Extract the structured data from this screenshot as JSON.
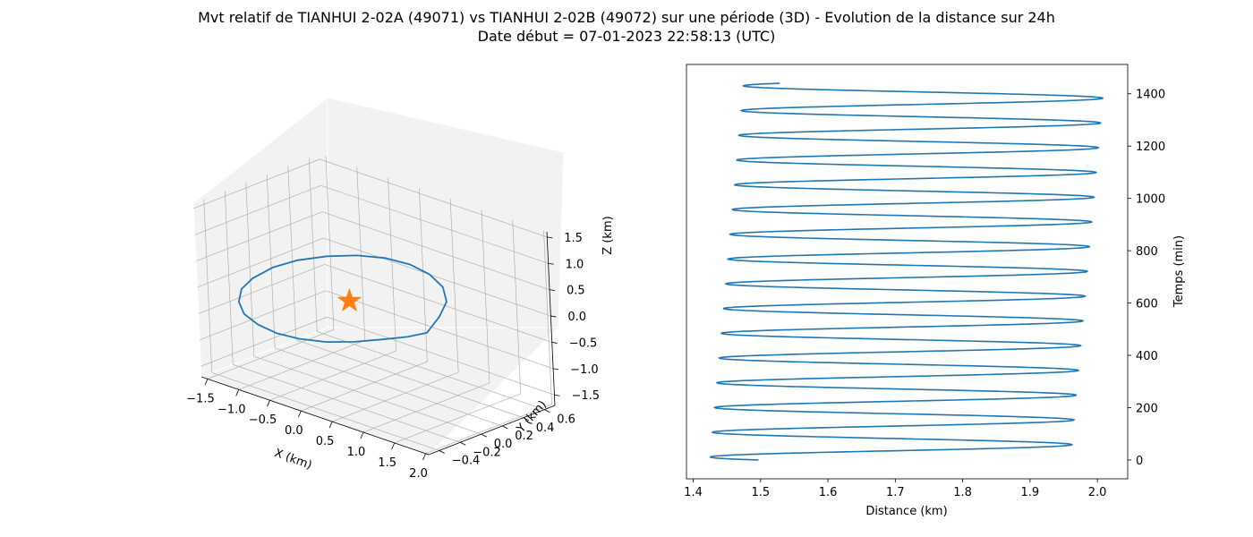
{
  "figure": {
    "title_line1": "Mvt relatif de TIANHUI 2-02A (49071) vs TIANHUI 2-02B (49072) sur une période (3D) - Evolution de la distance sur 24h",
    "title_line2": "Date début = 07-01-2023 22:58:13 (UTC)"
  },
  "colors": {
    "series": "#1f77b4",
    "marker": "#ff7f0e",
    "grid": "#b0b0b0",
    "pane": "#f2f2f2"
  },
  "chart_data": [
    {
      "type": "line",
      "projection": "3d",
      "xlabel": "X (km)",
      "ylabel": "Y (km)",
      "zlabel": "Z (km)",
      "x_ticks": [
        "−1.5",
        "−1.0",
        "−0.5",
        "0.0",
        "0.5",
        "1.0",
        "1.5",
        "2.0"
      ],
      "y_ticks": [
        "−0.4",
        "−0.2",
        "0.0",
        "0.2",
        "0.4",
        "0.6"
      ],
      "z_ticks": [
        "−1.5",
        "−1.0",
        "−0.5",
        "0.0",
        "0.5",
        "1.0",
        "1.5"
      ],
      "xlim": [
        -1.6,
        2.05
      ],
      "ylim": [
        -0.5,
        0.7
      ],
      "zlim": [
        -1.7,
        1.6
      ],
      "grid": true,
      "series": [
        {
          "x": [
            1.5,
            1.42,
            1.27,
            1.01,
            0.66,
            0.28,
            -0.12,
            -0.52,
            -0.89,
            -1.22,
            -1.45,
            -1.56,
            -1.56,
            -1.42,
            -1.17,
            -0.83,
            -0.44,
            -0.05,
            0.36,
            0.75,
            1.09,
            1.35,
            1.5
          ],
          "y": [
            -0.15,
            0.02,
            0.18,
            0.3,
            0.38,
            0.42,
            0.42,
            0.39,
            0.32,
            0.23,
            0.13,
            0.0,
            -0.11,
            -0.22,
            -0.32,
            -0.39,
            -0.44,
            -0.46,
            -0.44,
            -0.4,
            -0.33,
            -0.25,
            -0.15
          ],
          "z": [
            0.12,
            0.26,
            0.36,
            0.44,
            0.48,
            0.48,
            0.44,
            0.35,
            0.24,
            0.1,
            -0.05,
            -0.2,
            -0.32,
            -0.42,
            -0.47,
            -0.48,
            -0.45,
            -0.38,
            -0.29,
            -0.16,
            -0.03,
            0.06,
            0.12
          ]
        }
      ],
      "marker": {
        "symbol": "star",
        "x": 0.0,
        "y": 0.0,
        "z": 0.0
      }
    },
    {
      "type": "line",
      "xlabel": "Distance (km)",
      "ylabel": "Temps (min)",
      "xlim": [
        1.39,
        2.045
      ],
      "ylim": [
        -72,
        1512
      ],
      "x_ticks": [
        1.4,
        1.5,
        1.6,
        1.7,
        1.8,
        1.9,
        2.0
      ],
      "x_tick_labels": [
        "1.4",
        "1.5",
        "1.6",
        "1.7",
        "1.8",
        "1.9",
        "2.0"
      ],
      "y_ticks": [
        0,
        200,
        400,
        600,
        800,
        1000,
        1200,
        1400
      ],
      "y_tick_labels": [
        "0",
        "200",
        "400",
        "600",
        "800",
        "1000",
        "1200",
        "1400"
      ],
      "y_axis_side": "right",
      "grid": false,
      "oscillation": {
        "period_min": 94.6,
        "t_start": 0,
        "t_end": 1440,
        "distance_start": 1.497,
        "distance_end": 1.48,
        "min_first": 1.425,
        "min_last": 1.475,
        "max_first": 1.96,
        "max_last": 2.01
      }
    }
  ]
}
